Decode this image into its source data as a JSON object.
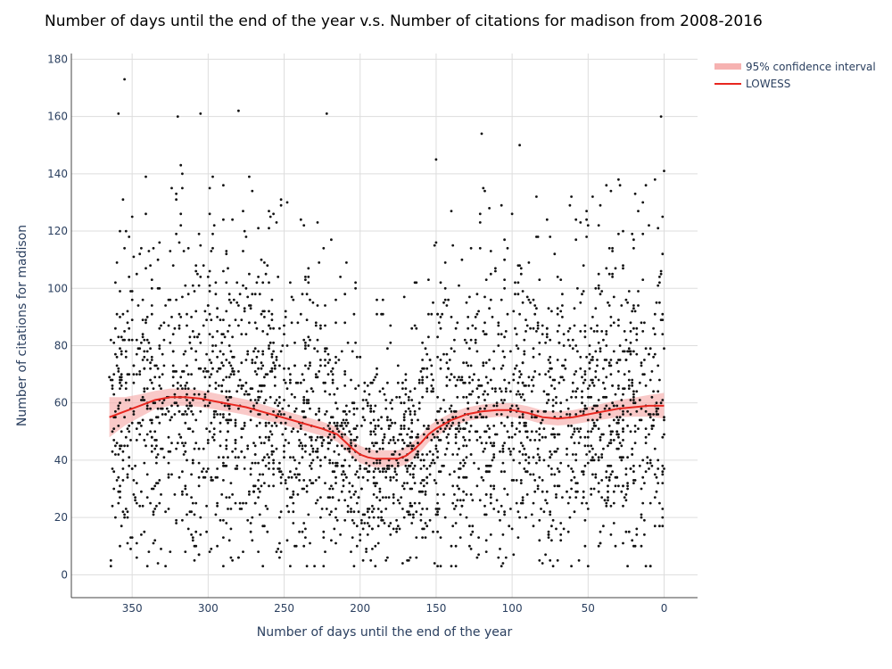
{
  "chart_data": {
    "type": "scatter",
    "title": "Number of days until the end of the year v.s. Number of citations for madison from 2008-2016",
    "xlabel": "Number of days until the end of the year",
    "ylabel": "Number of citations for madison",
    "xlim": [
      390,
      -22
    ],
    "ylim": [
      -8,
      182
    ],
    "x_reversed": true,
    "x_ticks": [
      350,
      300,
      250,
      200,
      150,
      100,
      50,
      0
    ],
    "y_ticks": [
      0,
      20,
      40,
      60,
      80,
      100,
      120,
      140,
      160,
      180
    ],
    "grid": true,
    "legend_position": "top-right",
    "legend": [
      "95% confidence interval",
      "LOWESS"
    ],
    "colors": {
      "points": "#111111",
      "lowess": "#e8261f",
      "band": "#f6b2b1",
      "grid": "#dddddd",
      "axis": "#444444"
    },
    "lowess": {
      "x": [
        365,
        355,
        345,
        335,
        325,
        315,
        305,
        295,
        285,
        275,
        265,
        255,
        245,
        235,
        225,
        215,
        210,
        205,
        200,
        195,
        190,
        185,
        180,
        175,
        170,
        165,
        160,
        155,
        150,
        140,
        130,
        120,
        110,
        100,
        90,
        80,
        70,
        60,
        50,
        40,
        30,
        20,
        10,
        0
      ],
      "y": [
        55,
        57,
        59,
        61,
        62,
        62,
        61.5,
        60.5,
        59.5,
        58.5,
        57,
        55.5,
        54,
        52.5,
        51,
        49,
        46.5,
        44,
        42,
        41,
        40.5,
        40.5,
        40.5,
        40.5,
        41.5,
        43.5,
        46,
        49,
        51,
        54,
        56,
        57,
        57.5,
        57.5,
        56.5,
        55,
        54.5,
        55,
        56,
        57,
        58,
        58.5,
        59,
        59
      ],
      "band_halfwidth": [
        7,
        5,
        4,
        3.2,
        3,
        3,
        2.9,
        2.8,
        2.7,
        2.7,
        2.6,
        2.5,
        2.5,
        2.5,
        2.5,
        2.6,
        2.7,
        2.8,
        3,
        3,
        3,
        3,
        3,
        3,
        3,
        3,
        2.9,
        2.8,
        2.7,
        2.5,
        2.4,
        2.4,
        2.4,
        2.4,
        2.4,
        2.4,
        2.4,
        2.5,
        2.6,
        2.8,
        3,
        3.3,
        3.8,
        4.5
      ]
    },
    "scatter": {
      "n_points": 3000,
      "x_range": [
        365,
        0
      ],
      "y_range": [
        3,
        173
      ],
      "notable_points": [
        [
          355,
          173
        ],
        [
          359,
          161
        ],
        [
          320,
          160
        ],
        [
          305,
          161
        ],
        [
          280,
          162
        ],
        [
          222,
          161
        ],
        [
          2,
          160
        ],
        [
          150,
          145
        ],
        [
          120,
          154
        ],
        [
          95,
          150
        ]
      ]
    }
  }
}
